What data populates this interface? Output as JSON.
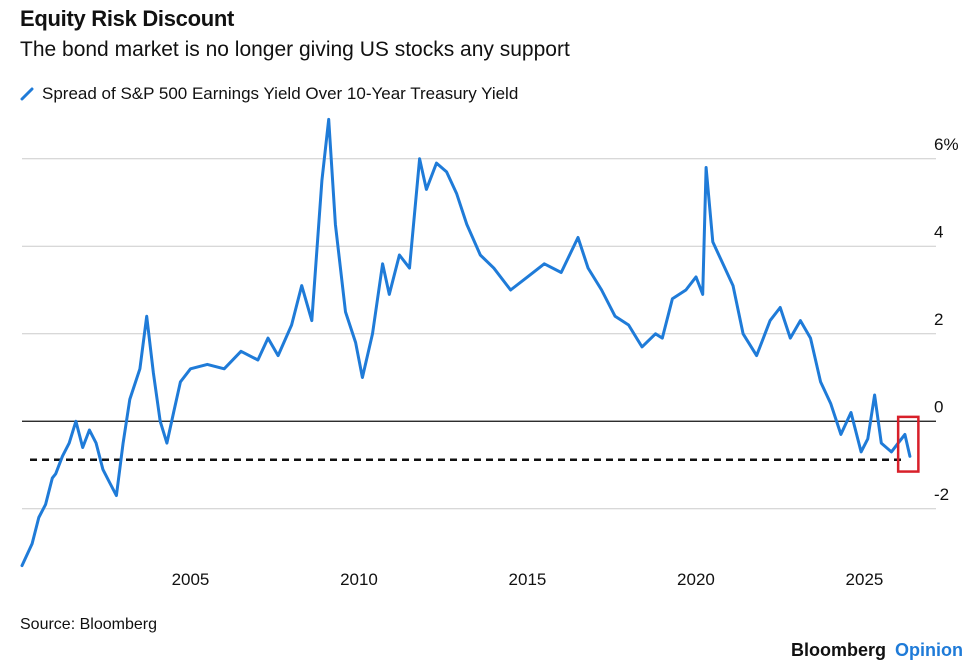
{
  "header": {
    "title": "Equity Risk Discount",
    "subtitle": "The bond market is no longer giving US stocks any support"
  },
  "footer": {
    "source": "Source: Bloomberg",
    "brand_primary": "Bloomberg",
    "brand_secondary": "Opinion"
  },
  "colors": {
    "series": "#1f7bd8",
    "highlight_box": "#d8202a",
    "brand_accent": "#1f7bd8"
  },
  "chart_data": {
    "type": "line",
    "title": "Equity Risk Discount",
    "subtitle": "The bond market is no longer giving US stocks any support",
    "xlabel": "",
    "ylabel": "",
    "y_unit_suffix": "%",
    "y_ticks": [
      6,
      4,
      2,
      0,
      -2
    ],
    "y_tick_labels": [
      "6%",
      "4",
      "2",
      "0",
      "-2"
    ],
    "x_ticks": [
      2005,
      2010,
      2015,
      2020,
      2025
    ],
    "x_tick_labels": [
      "2005",
      "2010",
      "2015",
      "2020",
      "2025"
    ],
    "xlim": [
      2000.0,
      2026.5
    ],
    "ylim": [
      -3.4,
      7.0
    ],
    "grid": true,
    "legend": "top-left",
    "reference_lines": [
      {
        "y": 0,
        "style": "solid"
      },
      {
        "y": -0.88,
        "style": "dashed"
      }
    ],
    "highlight": {
      "x": [
        2026.0,
        2026.6
      ],
      "y": [
        -1.15,
        0.1
      ]
    },
    "series": [
      {
        "name": "Spread of S&P 500 Earnings Yield Over 10-Year Treasury Yield",
        "points": [
          [
            2000.0,
            -3.3
          ],
          [
            2000.3,
            -2.8
          ],
          [
            2000.5,
            -2.2
          ],
          [
            2000.7,
            -1.9
          ],
          [
            2000.9,
            -1.3
          ],
          [
            2001.0,
            -1.2
          ],
          [
            2001.2,
            -0.8
          ],
          [
            2001.4,
            -0.5
          ],
          [
            2001.6,
            0.0
          ],
          [
            2001.8,
            -0.6
          ],
          [
            2002.0,
            -0.2
          ],
          [
            2002.2,
            -0.5
          ],
          [
            2002.4,
            -1.1
          ],
          [
            2002.6,
            -1.4
          ],
          [
            2002.8,
            -1.7
          ],
          [
            2003.0,
            -0.5
          ],
          [
            2003.2,
            0.5
          ],
          [
            2003.5,
            1.2
          ],
          [
            2003.7,
            2.4
          ],
          [
            2003.9,
            1.1
          ],
          [
            2004.1,
            0.0
          ],
          [
            2004.3,
            -0.5
          ],
          [
            2004.5,
            0.2
          ],
          [
            2004.7,
            0.9
          ],
          [
            2005.0,
            1.2
          ],
          [
            2005.5,
            1.3
          ],
          [
            2006.0,
            1.2
          ],
          [
            2006.5,
            1.6
          ],
          [
            2007.0,
            1.4
          ],
          [
            2007.3,
            1.9
          ],
          [
            2007.6,
            1.5
          ],
          [
            2008.0,
            2.2
          ],
          [
            2008.3,
            3.1
          ],
          [
            2008.6,
            2.3
          ],
          [
            2008.9,
            5.5
          ],
          [
            2009.1,
            6.9
          ],
          [
            2009.3,
            4.5
          ],
          [
            2009.6,
            2.5
          ],
          [
            2009.9,
            1.8
          ],
          [
            2010.1,
            1.0
          ],
          [
            2010.4,
            2.0
          ],
          [
            2010.7,
            3.6
          ],
          [
            2010.9,
            2.9
          ],
          [
            2011.2,
            3.8
          ],
          [
            2011.5,
            3.5
          ],
          [
            2011.8,
            6.0
          ],
          [
            2012.0,
            5.3
          ],
          [
            2012.3,
            5.9
          ],
          [
            2012.6,
            5.7
          ],
          [
            2012.9,
            5.2
          ],
          [
            2013.2,
            4.5
          ],
          [
            2013.6,
            3.8
          ],
          [
            2014.0,
            3.5
          ],
          [
            2014.5,
            3.0
          ],
          [
            2015.0,
            3.3
          ],
          [
            2015.5,
            3.6
          ],
          [
            2016.0,
            3.4
          ],
          [
            2016.5,
            4.2
          ],
          [
            2016.8,
            3.5
          ],
          [
            2017.2,
            3.0
          ],
          [
            2017.6,
            2.4
          ],
          [
            2018.0,
            2.2
          ],
          [
            2018.4,
            1.7
          ],
          [
            2018.8,
            2.0
          ],
          [
            2019.0,
            1.9
          ],
          [
            2019.3,
            2.8
          ],
          [
            2019.7,
            3.0
          ],
          [
            2020.0,
            3.3
          ],
          [
            2020.2,
            2.9
          ],
          [
            2020.3,
            5.8
          ],
          [
            2020.5,
            4.1
          ],
          [
            2020.8,
            3.6
          ],
          [
            2021.1,
            3.1
          ],
          [
            2021.4,
            2.0
          ],
          [
            2021.8,
            1.5
          ],
          [
            2022.2,
            2.3
          ],
          [
            2022.5,
            2.6
          ],
          [
            2022.8,
            1.9
          ],
          [
            2023.1,
            2.3
          ],
          [
            2023.4,
            1.9
          ],
          [
            2023.7,
            0.9
          ],
          [
            2024.0,
            0.4
          ],
          [
            2024.3,
            -0.3
          ],
          [
            2024.6,
            0.2
          ],
          [
            2024.9,
            -0.7
          ],
          [
            2025.1,
            -0.4
          ],
          [
            2025.3,
            0.6
          ],
          [
            2025.5,
            -0.5
          ],
          [
            2025.8,
            -0.7
          ],
          [
            2026.0,
            -0.5
          ],
          [
            2026.2,
            -0.3
          ],
          [
            2026.35,
            -0.8
          ]
        ]
      }
    ]
  }
}
